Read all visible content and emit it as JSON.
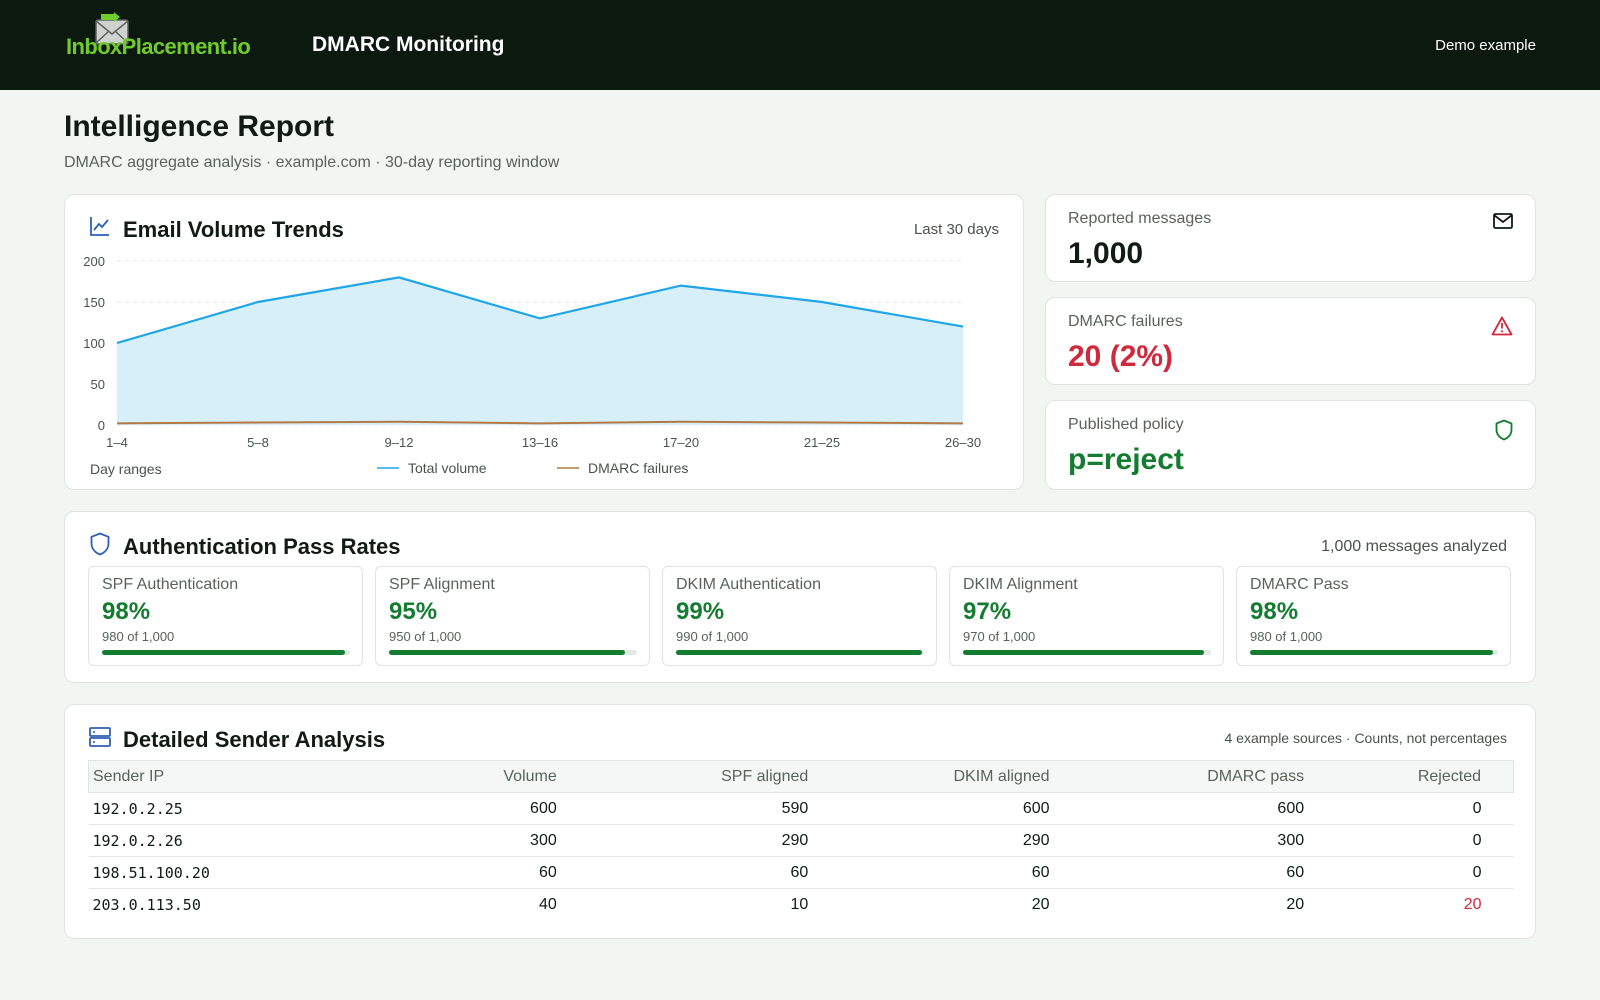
{
  "header": {
    "logo_text": "InboxPlacement.io",
    "app_title": "DMARC Monitoring",
    "demo_label": "Demo example"
  },
  "page": {
    "title": "Intelligence Report",
    "subtitle": "DMARC aggregate analysis · example.com · 30-day reporting window"
  },
  "trend": {
    "title": "Email Volume Trends",
    "period": "Last 30 days",
    "icon": "line-chart-icon"
  },
  "chart_data": {
    "type": "area",
    "categories": [
      "1–4",
      "5–8",
      "9–12",
      "13–16",
      "17–20",
      "21–25",
      "26–30"
    ],
    "series": [
      {
        "name": "Total volume",
        "values": [
          100,
          150,
          180,
          130,
          170,
          150,
          120
        ],
        "color": "#1ea6e8",
        "fill": "#d7eff8"
      },
      {
        "name": "DMARC failures",
        "values": [
          2,
          3,
          4,
          2,
          4,
          3,
          2
        ],
        "color": "#b27a47"
      }
    ],
    "xlabel": "Day ranges",
    "ylim": [
      0,
      200
    ],
    "yticks": [
      0,
      50,
      100,
      150,
      200
    ],
    "grid": true,
    "legend": "bottom-center"
  },
  "kpis": {
    "messages": {
      "label": "Reported messages",
      "value": "1,000",
      "icon": "envelope-icon"
    },
    "failures": {
      "label": "DMARC failures",
      "value": "20 (2%)",
      "icon": "warning-triangle-icon",
      "color": "#d0283c"
    },
    "policy": {
      "label": "Published policy",
      "value": "p=reject",
      "icon": "shield-icon",
      "color": "#147c30"
    }
  },
  "auth": {
    "title": "Authentication Pass Rates",
    "meta": "1,000 messages analyzed",
    "rates": [
      {
        "label": "SPF Authentication",
        "pct": "98%",
        "count": "980 of 1,000",
        "fraction": 0.98
      },
      {
        "label": "SPF Alignment",
        "pct": "95%",
        "count": "950 of 1,000",
        "fraction": 0.95
      },
      {
        "label": "DKIM Authentication",
        "pct": "99%",
        "count": "990 of 1,000",
        "fraction": 0.99
      },
      {
        "label": "DKIM Alignment",
        "pct": "97%",
        "count": "970 of 1,000",
        "fraction": 0.97
      },
      {
        "label": "DMARC Pass",
        "pct": "98%",
        "count": "980 of 1,000",
        "fraction": 0.98
      }
    ]
  },
  "senders": {
    "title": "Detailed Sender Analysis",
    "meta": "4 example sources · Counts, not percentages",
    "columns": [
      "Sender IP",
      "Volume",
      "SPF aligned",
      "DKIM aligned",
      "DMARC pass",
      "Rejected"
    ],
    "rows": [
      [
        "192.0.2.25",
        "600",
        "590",
        "600",
        "600",
        "0"
      ],
      [
        "192.0.2.26",
        "300",
        "290",
        "290",
        "300",
        "0"
      ],
      [
        "198.51.100.20",
        "60",
        "60",
        "60",
        "60",
        "0"
      ],
      [
        "203.0.113.50",
        "40",
        "10",
        "20",
        "20",
        "20"
      ]
    ],
    "reject_color": "#d0283c"
  }
}
